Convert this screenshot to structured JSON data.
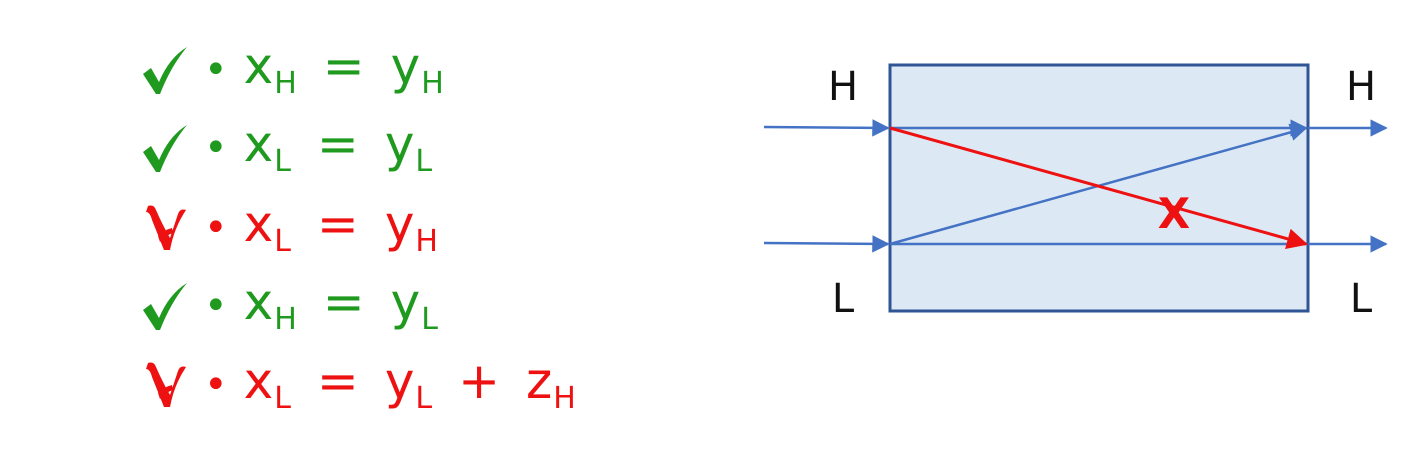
{
  "rules": [
    {
      "status": "allowed",
      "icon": "check-icon",
      "color": "#1f9a1f",
      "lhs_var": "x",
      "lhs_sub": "H",
      "op": "=",
      "rhs_var": "y",
      "rhs_sub": "H",
      "extra_op": "",
      "extra_var": "",
      "extra_sub": ""
    },
    {
      "status": "allowed",
      "icon": "check-icon",
      "color": "#1f9a1f",
      "lhs_var": "x",
      "lhs_sub": "L",
      "op": "=",
      "rhs_var": "y",
      "rhs_sub": "L",
      "extra_op": "",
      "extra_var": "",
      "extra_sub": ""
    },
    {
      "status": "forbidden",
      "icon": "cross-icon",
      "color": "#ee1111",
      "lhs_var": "x",
      "lhs_sub": "L",
      "op": "=",
      "rhs_var": "y",
      "rhs_sub": "H",
      "extra_op": "",
      "extra_var": "",
      "extra_sub": ""
    },
    {
      "status": "allowed",
      "icon": "check-icon",
      "color": "#1f9a1f",
      "lhs_var": "x",
      "lhs_sub": "H",
      "op": "=",
      "rhs_var": "y",
      "rhs_sub": "L",
      "extra_op": "",
      "extra_var": "",
      "extra_sub": ""
    },
    {
      "status": "forbidden",
      "icon": "cross-icon",
      "color": "#ee1111",
      "lhs_var": "x",
      "lhs_sub": "L",
      "op": "=",
      "rhs_var": "y",
      "rhs_sub": "L",
      "extra_op": "+",
      "extra_var": "z",
      "extra_sub": "H"
    }
  ],
  "bullet": "•",
  "diagram": {
    "labels": {
      "left_top": "H",
      "left_bottom": "L",
      "right_top": "H",
      "right_bottom": "L"
    },
    "flow_mark": "X",
    "box_fill": "#dde8f5",
    "box_stroke": "#2f5597",
    "flow_color": "#4472c4",
    "forbidden_color": "#ee1111"
  }
}
